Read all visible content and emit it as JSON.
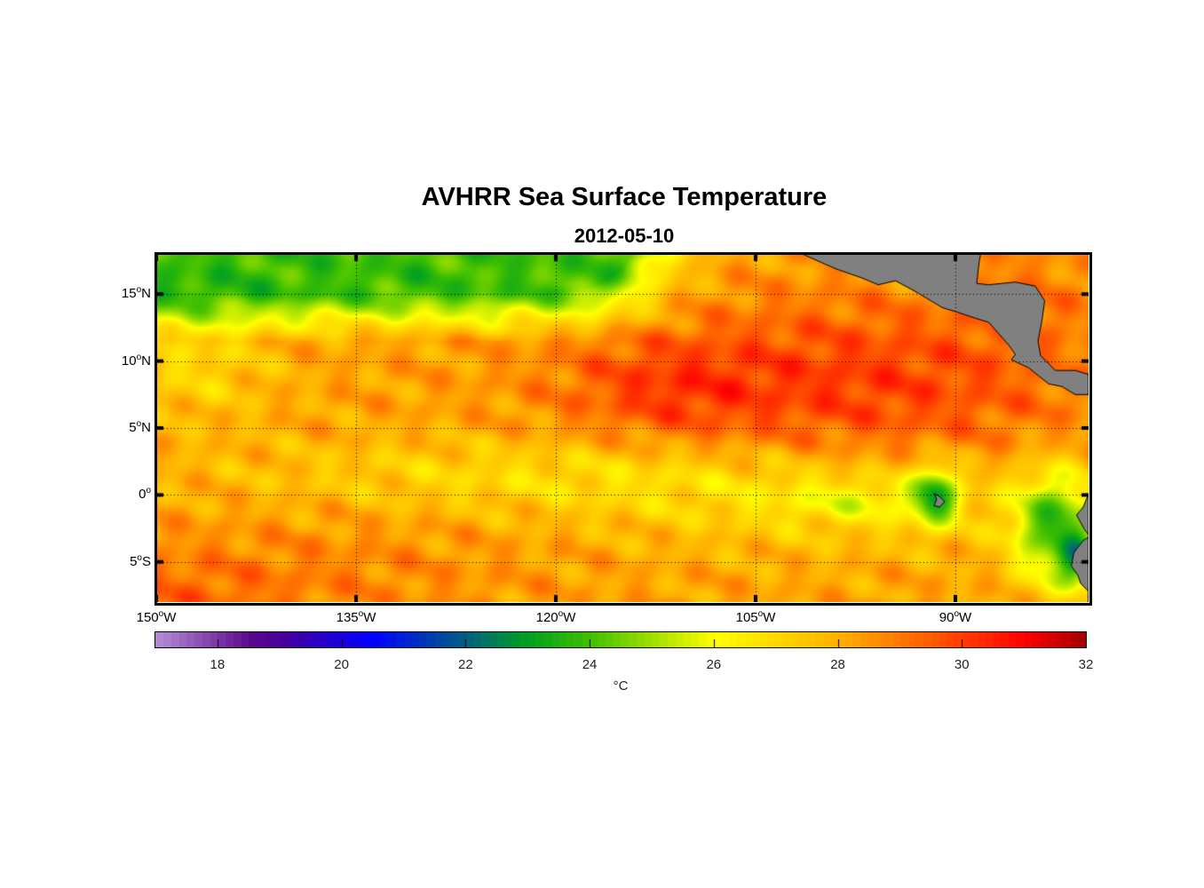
{
  "title": "AVHRR Sea Surface Temperature",
  "subtitle": "2012-05-10",
  "y_ticks": [
    {
      "num": "15",
      "deg": "o",
      "hemi": "N",
      "lat": 15
    },
    {
      "num": "10",
      "deg": "o",
      "hemi": "N",
      "lat": 10
    },
    {
      "num": "5",
      "deg": "o",
      "hemi": "N",
      "lat": 5
    },
    {
      "num": "0",
      "deg": "o",
      "hemi": "",
      "lat": 0
    },
    {
      "num": "5",
      "deg": "o",
      "hemi": "S",
      "lat": -5
    }
  ],
  "x_ticks": [
    {
      "num": "150",
      "deg": "o",
      "hemi": "W",
      "lon": -150
    },
    {
      "num": "135",
      "deg": "o",
      "hemi": "W",
      "lon": -135
    },
    {
      "num": "120",
      "deg": "o",
      "hemi": "W",
      "lon": -120
    },
    {
      "num": "105",
      "deg": "o",
      "hemi": "W",
      "lon": -105
    },
    {
      "num": "90",
      "deg": "o",
      "hemi": "W",
      "lon": -90
    }
  ],
  "colorbar": {
    "ticks": [
      "18",
      "20",
      "22",
      "24",
      "26",
      "28",
      "30",
      "32"
    ],
    "unit": "°C"
  },
  "chart_data": {
    "type": "heatmap",
    "variable": "Sea Surface Temperature",
    "units": "°C",
    "lon_range": [
      -150,
      -80
    ],
    "lat_range": [
      -8,
      18
    ],
    "clim": [
      17,
      32
    ],
    "grid": true,
    "land_color": "#808080",
    "colormap": [
      [
        17,
        "#b58fd6"
      ],
      [
        18.5,
        "#5c0a8c"
      ],
      [
        19,
        "#4a0099"
      ],
      [
        20.5,
        "#0000ff"
      ],
      [
        22,
        "#006080"
      ],
      [
        23,
        "#00a020"
      ],
      [
        24,
        "#40c000"
      ],
      [
        25,
        "#a0e000"
      ],
      [
        26,
        "#ffff00"
      ],
      [
        27,
        "#ffd800"
      ],
      [
        28,
        "#ffb000"
      ],
      [
        29,
        "#ff7800"
      ],
      [
        30,
        "#ff3c00"
      ],
      [
        31,
        "#ff0000"
      ],
      [
        32,
        "#a00000"
      ]
    ]
  }
}
